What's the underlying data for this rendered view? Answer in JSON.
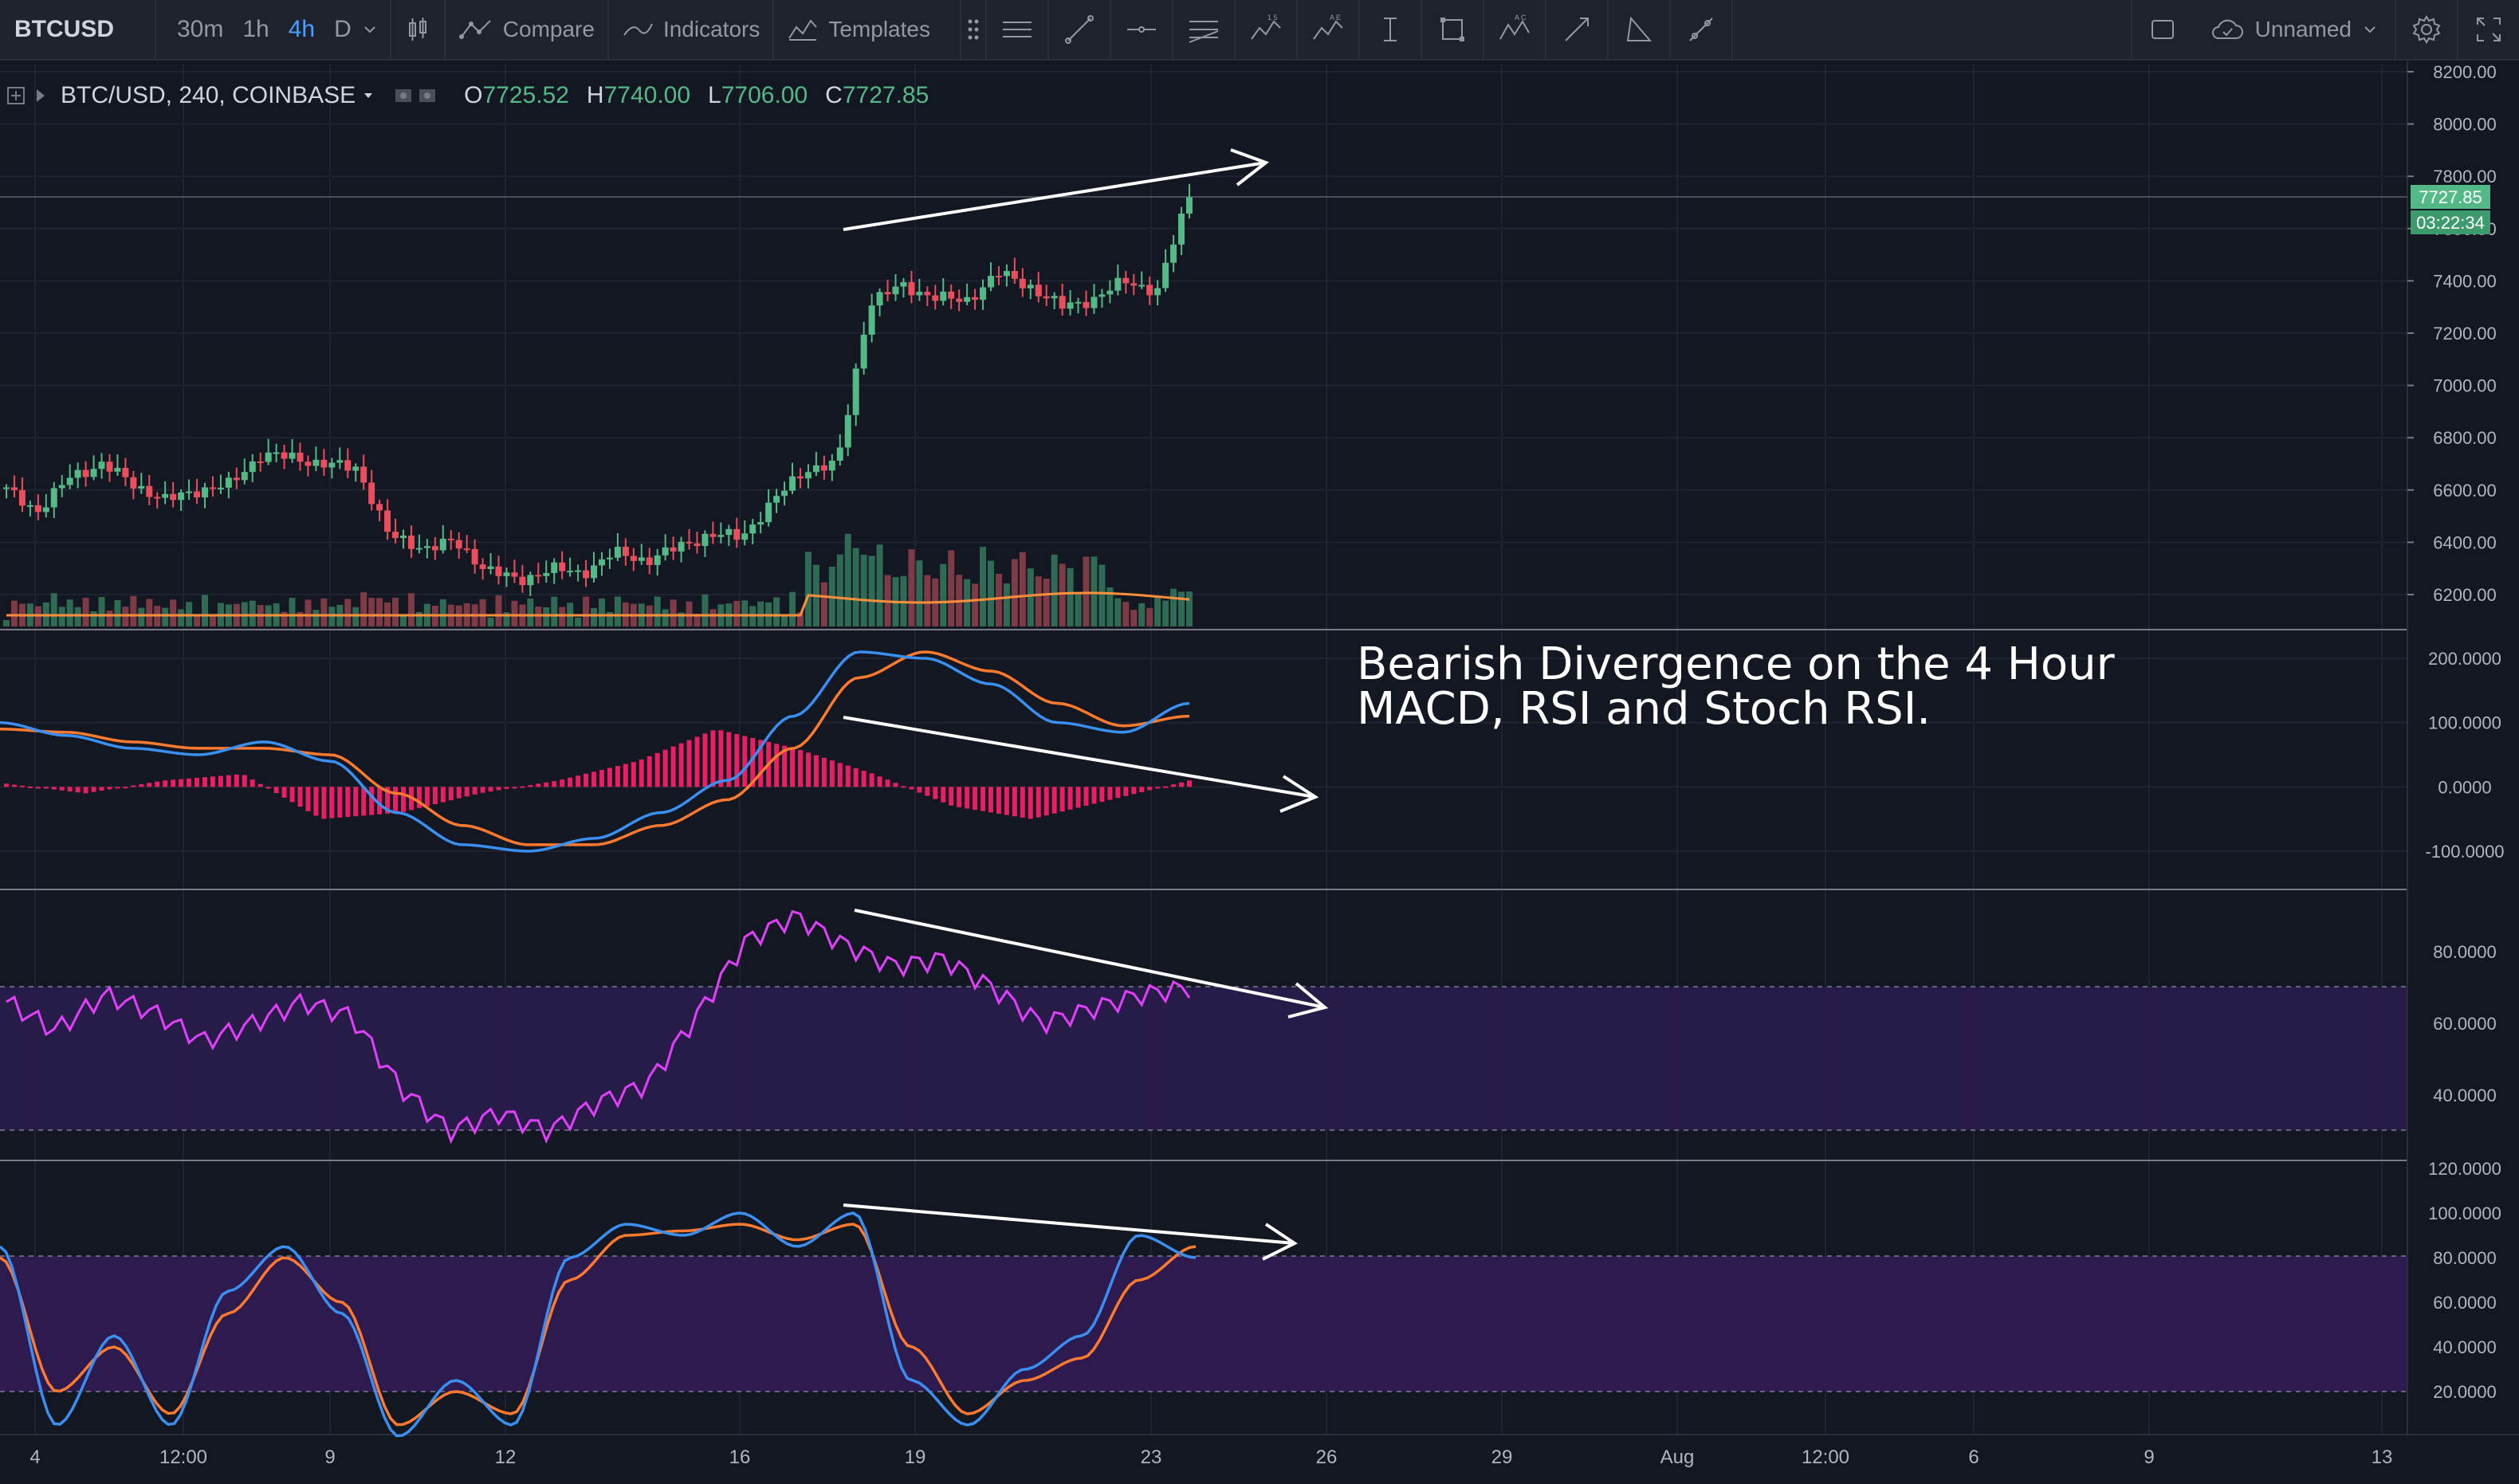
{
  "toolbar": {
    "symbol": "BTCUSD",
    "intervals": [
      "30m",
      "1h",
      "4h",
      "D"
    ],
    "active_interval": "4h",
    "compare_label": "Compare",
    "indicators_label": "Indicators",
    "templates_label": "Templates",
    "layout_name": "Unnamed"
  },
  "legend": {
    "symbol": "BTC/USD, 240, COINBASE",
    "open_label": "O",
    "open": "7725.52",
    "high_label": "H",
    "high": "7740.00",
    "low_label": "L",
    "low": "7706.00",
    "close_label": "C",
    "close": "7727.85"
  },
  "price_tag": {
    "last": "7727.85",
    "countdown": "03:22:34"
  },
  "annotation": "Bearish Divergence on the 4 Hour MACD, RSI and Stoch RSI.",
  "axes": {
    "price_ticks": [
      "8200.00",
      "8000.00",
      "7800.00",
      "7600.00",
      "7400.00",
      "7200.00",
      "7000.00",
      "6800.00",
      "6600.00",
      "6400.00",
      "6200.00"
    ],
    "macd_ticks": [
      "200.0000",
      "100.0000",
      "0.0000",
      "-100.0000"
    ],
    "rsi_ticks": [
      "80.0000",
      "60.0000",
      "40.0000"
    ],
    "stoch_ticks": [
      "120.0000",
      "100.0000",
      "80.0000",
      "60.0000",
      "40.0000",
      "20.0000"
    ],
    "time_labels": [
      "4",
      "12:00",
      "9",
      "12",
      "16",
      "19",
      "23",
      "26",
      "29",
      "Aug",
      "12:00",
      "6",
      "9",
      "13"
    ]
  },
  "colors": {
    "background": "#131722",
    "up": "#53b987",
    "down": "#eb4d5c",
    "macd_line": "#2196f3",
    "signal_line": "#ff6d00",
    "histogram": "#e91e63",
    "rsi_line": "#e040fb",
    "band_fill": "#3a1f5d",
    "trendline": "#ffffff"
  },
  "chart_data": [
    {
      "type": "candlestick",
      "title": "BTC/USD, 240, COINBASE",
      "x_label_dates": [
        "4",
        "12:00",
        "9",
        "12",
        "16",
        "19",
        "23",
        "26",
        "29",
        "Aug",
        "12:00",
        "6",
        "9",
        "13"
      ],
      "ylim": [
        6100,
        8300
      ],
      "close_path": [
        6600,
        6520,
        6650,
        6700,
        6620,
        6560,
        6600,
        6620,
        6740,
        6720,
        6700,
        6680,
        6420,
        6380,
        6400,
        6300,
        6250,
        6300,
        6280,
        6360,
        6330,
        6380,
        6430,
        6420,
        6560,
        6680,
        6700,
        7320,
        7380,
        7340,
        7320,
        7430,
        7380,
        7300,
        7330,
        7400,
        7360,
        7730
      ],
      "last_price": 7727.85,
      "trendline": "rising highs"
    },
    {
      "type": "line",
      "title": "MACD",
      "series": [
        {
          "values": [
            100,
            80,
            60,
            50,
            70,
            40,
            -40,
            -90,
            -100,
            -80,
            -40,
            10,
            110,
            210,
            200,
            160,
            100,
            85,
            130
          ]
        },
        {
          "values": [
            90,
            85,
            70,
            60,
            60,
            50,
            -10,
            -60,
            -90,
            -90,
            -60,
            -20,
            60,
            170,
            210,
            180,
            130,
            95,
            110
          ]
        }
      ],
      "histogram": [
        5,
        -10,
        10,
        20,
        -50,
        -40,
        -10,
        10,
        40,
        90,
        60,
        20,
        -30,
        -50,
        -20,
        10
      ],
      "ylim": [
        -130,
        230
      ],
      "trendline": "falling highs"
    },
    {
      "type": "line",
      "title": "RSI",
      "series": [
        {
          "values": [
            66,
            58,
            68,
            63,
            55,
            60,
            66,
            62,
            42,
            30,
            35,
            30,
            38,
            43,
            62,
            83,
            90,
            82,
            76,
            78,
            70,
            60,
            64,
            68,
            70
          ]
        }
      ],
      "ylim": [
        20,
        100
      ],
      "band": [
        30,
        70
      ],
      "trendline": "falling highs"
    },
    {
      "type": "line",
      "title": "Stoch RSI",
      "series": [
        {
          "values": [
            85,
            5,
            45,
            5,
            65,
            85,
            55,
            0,
            25,
            5,
            80,
            95,
            90,
            100,
            85,
            100,
            25,
            5,
            30,
            45,
            90,
            80
          ]
        },
        {
          "values": [
            80,
            20,
            40,
            10,
            55,
            80,
            60,
            5,
            20,
            10,
            70,
            90,
            92,
            95,
            88,
            95,
            40,
            10,
            25,
            35,
            70,
            85
          ]
        }
      ],
      "ylim": [
        0,
        120
      ],
      "band": [
        20,
        80
      ],
      "trendline": "falling highs"
    }
  ]
}
